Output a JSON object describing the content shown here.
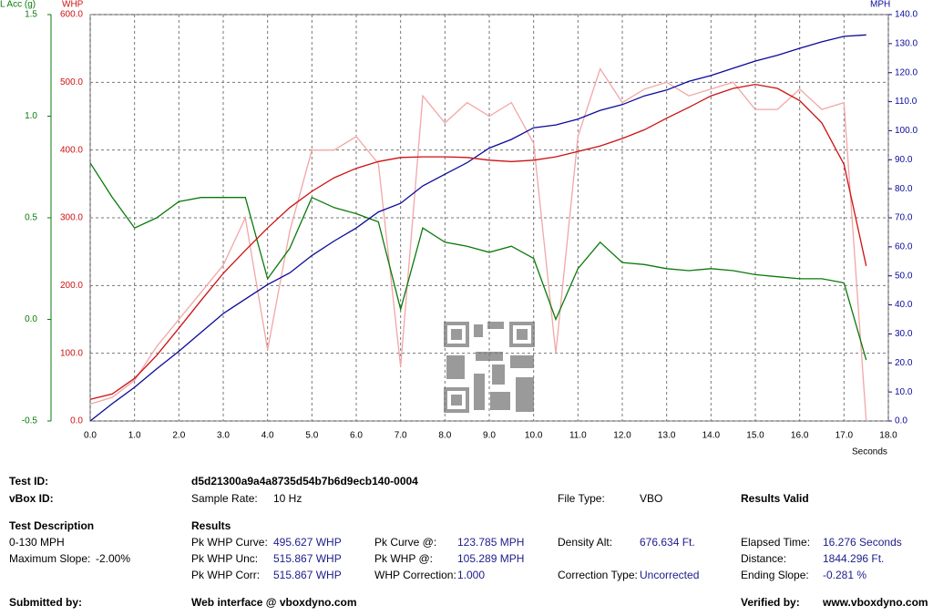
{
  "chart_data": {
    "type": "line",
    "ylabel": "WHP",
    "y2label": "MPH",
    "y3label": "L Acc (g)",
    "xlabel": "Seconds",
    "x": [
      0,
      0.5,
      1,
      1.5,
      2,
      2.5,
      3,
      3.5,
      4,
      4.5,
      5,
      5.5,
      6,
      6.5,
      7,
      7.5,
      8,
      8.5,
      9,
      9.5,
      10,
      10.5,
      11,
      11.5,
      12,
      12.5,
      13,
      13.5,
      14,
      14.5,
      15,
      15.5,
      16,
      16.5,
      17,
      17.5
    ],
    "series": [
      {
        "color": "#f2a6a6",
        "axis": "y",
        "values": [
          25,
          35,
          60,
          110,
          150,
          190,
          230,
          300,
          105,
          280,
          400,
          400,
          420,
          380,
          80,
          480,
          440,
          470,
          450,
          470,
          410,
          100,
          420,
          520,
          470,
          490,
          500,
          480,
          490,
          500,
          460,
          460,
          490,
          460,
          470,
          0
        ]
      },
      {
        "color": "#0a7a0a",
        "axis": "y3",
        "values": [
          0.77,
          0.6,
          0.45,
          0.5,
          0.58,
          0.6,
          0.6,
          0.6,
          0.2,
          0.35,
          0.6,
          0.55,
          0.52,
          0.48,
          0.05,
          0.45,
          0.38,
          0.36,
          0.33,
          0.36,
          0.3,
          0.0,
          0.25,
          0.38,
          0.28,
          0.27,
          0.25,
          0.24,
          0.25,
          0.24,
          0.22,
          0.21,
          0.2,
          0.2,
          0.18,
          -0.2
        ]
      },
      {
        "color": "#0a0a99",
        "axis": "y2",
        "values": [
          0,
          6,
          11.6,
          18,
          24,
          30.5,
          37,
          42,
          47,
          51,
          57,
          62,
          66.5,
          72,
          75,
          81,
          85,
          89,
          94,
          97,
          101,
          102,
          104,
          107,
          109,
          112,
          114,
          117,
          119,
          121.5,
          124,
          126,
          128.4,
          130.6,
          132.5,
          133
        ]
      },
      {
        "color": "#cc1111",
        "axis": "y",
        "values": [
          32,
          40,
          63,
          97,
          137,
          178,
          218,
          252,
          285,
          315,
          339,
          359,
          373,
          383,
          389,
          390,
          390,
          389,
          385,
          383,
          385,
          390,
          398,
          406,
          417,
          430,
          447,
          463,
          480,
          491,
          497,
          491,
          473,
          440,
          379,
          229
        ]
      }
    ],
    "xlim": [
      0,
      18
    ],
    "xticks": [
      {
        "value": 0,
        "label": "0.0"
      },
      {
        "value": 1,
        "label": "1.0"
      },
      {
        "value": 2,
        "label": "2.0"
      },
      {
        "value": 3,
        "label": "3.0"
      },
      {
        "value": 4,
        "label": "4.0"
      },
      {
        "value": 5,
        "label": "5.0"
      },
      {
        "value": 6,
        "label": "6.0"
      },
      {
        "value": 7,
        "label": "7.0"
      },
      {
        "value": 8,
        "label": "8.0"
      },
      {
        "value": 9,
        "label": "9.0"
      },
      {
        "value": 10,
        "label": "10.0"
      },
      {
        "value": 11,
        "label": "11.0"
      },
      {
        "value": 12,
        "label": "12.0"
      },
      {
        "value": 13,
        "label": "13.0"
      },
      {
        "value": 14,
        "label": "14.0"
      },
      {
        "value": 15,
        "label": "15.0"
      },
      {
        "value": 16,
        "label": "16.0"
      },
      {
        "value": 17,
        "label": "17.0"
      },
      {
        "value": 18,
        "label": "18.0"
      }
    ],
    "ylim": [
      0,
      600
    ],
    "yticks": [
      {
        "value": 0,
        "label": "0.0"
      },
      {
        "value": 100,
        "label": "100.0"
      },
      {
        "value": 200,
        "label": "200.0"
      },
      {
        "value": 300,
        "label": "300.0"
      },
      {
        "value": 400,
        "label": "400.0"
      },
      {
        "value": 500,
        "label": "500.0"
      },
      {
        "value": 600,
        "label": "600.0"
      }
    ],
    "y2lim": [
      0,
      140
    ],
    "y2ticks": [
      {
        "value": 0,
        "label": "0.0"
      },
      {
        "value": 10,
        "label": "10.0"
      },
      {
        "value": 20,
        "label": "20.0"
      },
      {
        "value": 30,
        "label": "30.0"
      },
      {
        "value": 40,
        "label": "40.0"
      },
      {
        "value": 50,
        "label": "50.0"
      },
      {
        "value": 60,
        "label": "60.0"
      },
      {
        "value": 70,
        "label": "70.0"
      },
      {
        "value": 80,
        "label": "80.0"
      },
      {
        "value": 90,
        "label": "90.0"
      },
      {
        "value": 100,
        "label": "100.0"
      },
      {
        "value": 110,
        "label": "110.0"
      },
      {
        "value": 120,
        "label": "120.0"
      },
      {
        "value": 130,
        "label": "130.0"
      },
      {
        "value": 140,
        "label": "140.0"
      }
    ],
    "y3lim": [
      -0.5,
      1.5
    ],
    "y3ticks": [
      -0.5,
      {
        "value": 0,
        "label": "0.0"
      },
      0.5,
      {
        "value": 1,
        "label": "1.0"
      },
      1.5
    ],
    "grid": true
  },
  "report": {
    "test_id": {
      "label": "Test ID:",
      "value": "d5d21300a9a4a8735d54b7b6d9ecb140-0004"
    },
    "vbox_id": {
      "label": "vBox ID:"
    },
    "sample_rate": {
      "label": "Sample Rate:",
      "value": "10 Hz"
    },
    "file_type": {
      "label": "File Type:",
      "value": "VBO"
    },
    "status": "Results Valid",
    "test_description": {
      "heading": "Test Description",
      "name": "0-130 MPH",
      "max_slope_label": "Maximum Slope:",
      "max_slope_value": "-2.00%"
    },
    "results": {
      "heading": "Results",
      "col1": [
        [
          "Pk WHP Curve:",
          "495.627 WHP"
        ],
        [
          "Pk WHP Unc:",
          "515.867 WHP"
        ],
        [
          "Pk WHP Corr:",
          "515.867 WHP"
        ]
      ],
      "col2": [
        [
          "Pk Curve @:",
          "123.785 MPH"
        ],
        [
          "Pk WHP @:",
          "105.289 MPH"
        ],
        [
          "WHP Correction:",
          "1.000"
        ]
      ],
      "col3": [
        [
          "Density Alt:",
          "676.634 Ft."
        ],
        [
          "Correction Type:",
          "Uncorrected"
        ]
      ],
      "col4": [
        [
          "Elapsed Time:",
          "16.276 Seconds"
        ],
        [
          "Distance:",
          "1844.296 Ft."
        ],
        [
          "Ending Slope:",
          "-0.281 %"
        ]
      ]
    },
    "submitted_by": {
      "label": "Submitted by:",
      "value": "Web interface @ vboxdyno.com"
    },
    "verified_by": {
      "label": "Verified by:",
      "value": "www.vboxdyno.com"
    }
  }
}
